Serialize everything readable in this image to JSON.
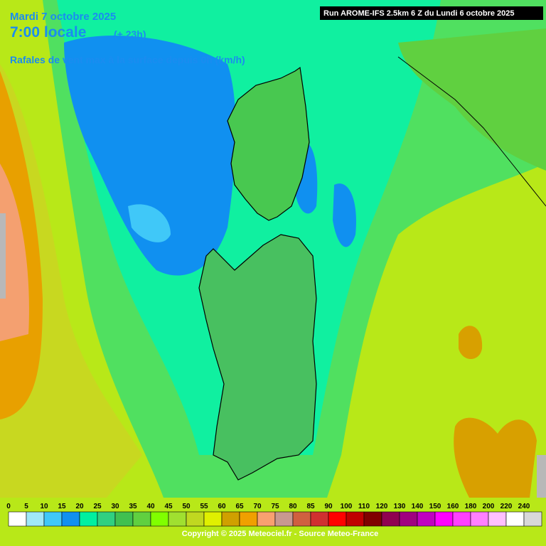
{
  "header": {
    "date": "Mardi 7 octobre 2025",
    "time": "7:00 locale",
    "lead": "(+ 23h)",
    "title": "Rafales de vent max à la surface depuis 0h (km/h)",
    "run": "Run AROME-IFS 2.5km 6 Z du Lundi 6 octobre 2025"
  },
  "legend": {
    "items": [
      {
        "value": 0,
        "color": "#ffffff"
      },
      {
        "value": 5,
        "color": "#a0e8f8"
      },
      {
        "value": 10,
        "color": "#40c8f8"
      },
      {
        "value": 15,
        "color": "#1090f0"
      },
      {
        "value": 20,
        "color": "#00f0a0"
      },
      {
        "value": 25,
        "color": "#30d080"
      },
      {
        "value": 30,
        "color": "#40c050"
      },
      {
        "value": 35,
        "color": "#60d040"
      },
      {
        "value": 40,
        "color": "#80ff00"
      },
      {
        "value": 45,
        "color": "#a0e030"
      },
      {
        "value": 50,
        "color": "#c0d820"
      },
      {
        "value": 55,
        "color": "#e0f000"
      },
      {
        "value": 60,
        "color": "#d0a000"
      },
      {
        "value": 65,
        "color": "#f0a000"
      },
      {
        "value": 70,
        "color": "#f8a070"
      },
      {
        "value": 75,
        "color": "#c89890"
      },
      {
        "value": 80,
        "color": "#d06040"
      },
      {
        "value": 85,
        "color": "#d03030"
      },
      {
        "value": 90,
        "color": "#ff0000"
      },
      {
        "value": 100,
        "color": "#c00000"
      },
      {
        "value": 110,
        "color": "#800000"
      },
      {
        "value": 120,
        "color": "#900050"
      },
      {
        "value": 130,
        "color": "#a00080"
      },
      {
        "value": 140,
        "color": "#c000c0"
      },
      {
        "value": 150,
        "color": "#ff00ff"
      },
      {
        "value": 160,
        "color": "#ff40ff"
      },
      {
        "value": 180,
        "color": "#ff80ff"
      },
      {
        "value": 200,
        "color": "#ffc0ff"
      },
      {
        "value": 220,
        "color": "#ffffff"
      },
      {
        "value": 240,
        "color": "#d8d8d8"
      }
    ]
  },
  "footer": {
    "copyright": "Copyright © 2025 Meteociel.fr - Source Meteo-France"
  }
}
